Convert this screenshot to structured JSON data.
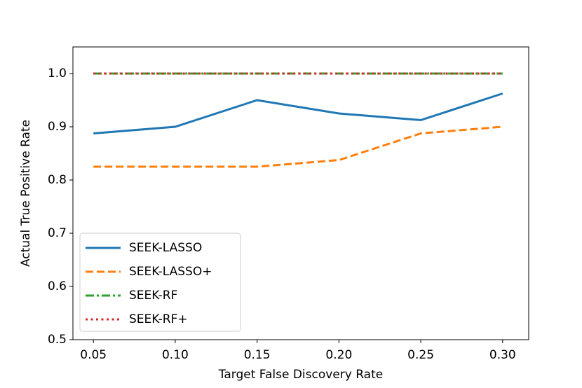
{
  "chart_data": {
    "type": "line",
    "x_label": "Target False Discovery Rate",
    "y_label": "Actual True Positive Rate",
    "x": [
      0.05,
      0.1,
      0.15,
      0.2,
      0.25,
      0.3
    ],
    "series": [
      {
        "name": "SEEK-LASSO",
        "color": "#1f77b4",
        "linestyle": "solid",
        "values": [
          0.8875,
          0.9,
          0.95,
          0.925,
          0.9125,
          0.9625
        ]
      },
      {
        "name": "SEEK-LASSO+",
        "color": "#ff7f0e",
        "linestyle": "dashed",
        "values": [
          0.825,
          0.825,
          0.825,
          0.8375,
          0.8875,
          0.9
        ]
      },
      {
        "name": "SEEK-RF",
        "color": "#2ca02c",
        "linestyle": "dashdot",
        "values": [
          1.0,
          1.0,
          1.0,
          1.0,
          1.0,
          1.0
        ]
      },
      {
        "name": "SEEK-RF+",
        "color": "#d62728",
        "linestyle": "dotted",
        "values": [
          1.0,
          1.0,
          1.0,
          1.0,
          1.0,
          1.0
        ]
      }
    ],
    "xlim": [
      0.0375,
      0.3125
    ],
    "xticks": [
      0.05,
      {
        "value": 0.1,
        "label": "0.10"
      },
      0.15,
      {
        "value": 0.2,
        "label": "0.20"
      },
      0.25,
      {
        "value": 0.3,
        "label": "0.30"
      }
    ],
    "ylim": [
      0.5,
      1.05
    ],
    "yticks": [
      0.5,
      0.6,
      0.7,
      0.8,
      0.9,
      {
        "value": 1.0,
        "label": "1.0"
      }
    ],
    "grid": false,
    "legend": "lower left"
  }
}
